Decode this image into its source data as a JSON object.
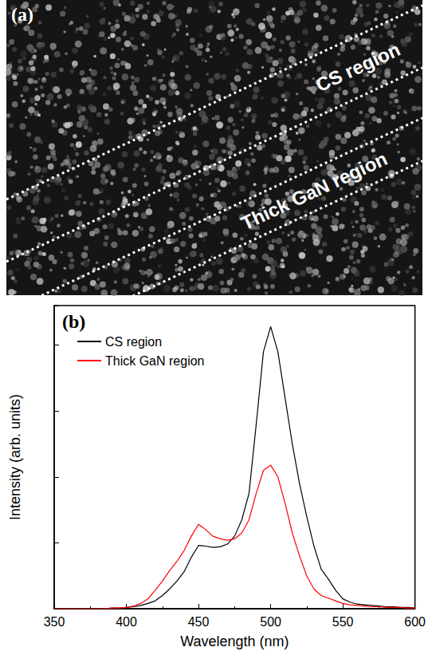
{
  "image_panel": {
    "label": "(a)",
    "annotations": [
      "CS region",
      "Thick GaN region"
    ]
  },
  "chart_data": {
    "type": "line",
    "panel_label": "(b)",
    "x_label": "Wavelength (nm)",
    "y_label": "Intensity (arb. units)",
    "x": [
      350,
      355,
      360,
      365,
      370,
      375,
      380,
      385,
      390,
      395,
      400,
      405,
      410,
      415,
      420,
      425,
      430,
      435,
      440,
      445,
      450,
      455,
      460,
      465,
      470,
      475,
      480,
      485,
      490,
      495,
      500,
      505,
      510,
      515,
      520,
      525,
      530,
      535,
      540,
      545,
      550,
      555,
      560,
      565,
      570,
      575,
      580,
      585,
      590,
      595,
      600
    ],
    "series": [
      {
        "name": "CS region",
        "color": "#000000",
        "values": [
          0,
          0,
          0,
          0,
          0,
          0,
          0,
          0,
          0.01,
          0.01,
          0.02,
          0.03,
          0.05,
          0.08,
          0.12,
          0.2,
          0.3,
          0.42,
          0.56,
          0.78,
          0.96,
          0.95,
          0.93,
          0.94,
          0.98,
          1.1,
          1.35,
          1.75,
          2.8,
          3.9,
          4.28,
          3.9,
          3.2,
          2.5,
          1.9,
          1.4,
          0.95,
          0.6,
          0.45,
          0.28,
          0.15,
          0.1,
          0.07,
          0.06,
          0.05,
          0.04,
          0.03,
          0.03,
          0.02,
          0.02,
          0.01
        ]
      },
      {
        "name": "Thick GaN region",
        "color": "#ff0000",
        "values": [
          0,
          0,
          0,
          0,
          0,
          0,
          0,
          0,
          0.01,
          0.01,
          0.02,
          0.04,
          0.08,
          0.15,
          0.28,
          0.42,
          0.58,
          0.72,
          0.88,
          1.1,
          1.28,
          1.2,
          1.1,
          1.06,
          1.04,
          1.06,
          1.15,
          1.35,
          1.75,
          2.1,
          2.18,
          2.0,
          1.6,
          1.15,
          0.8,
          0.5,
          0.3,
          0.2,
          0.16,
          0.12,
          0.08,
          0.06,
          0.05,
          0.04,
          0.03,
          0.03,
          0.02,
          0.02,
          0.02,
          0.01,
          0.01
        ]
      }
    ],
    "xlim": [
      350,
      600
    ],
    "xticks": [
      350,
      400,
      450,
      500,
      550,
      600
    ],
    "ylim": [
      0,
      4.6
    ],
    "yticks": [
      0,
      1,
      2,
      3,
      4
    ],
    "tick_labels": "x",
    "grid": false,
    "legend": "upper left"
  }
}
